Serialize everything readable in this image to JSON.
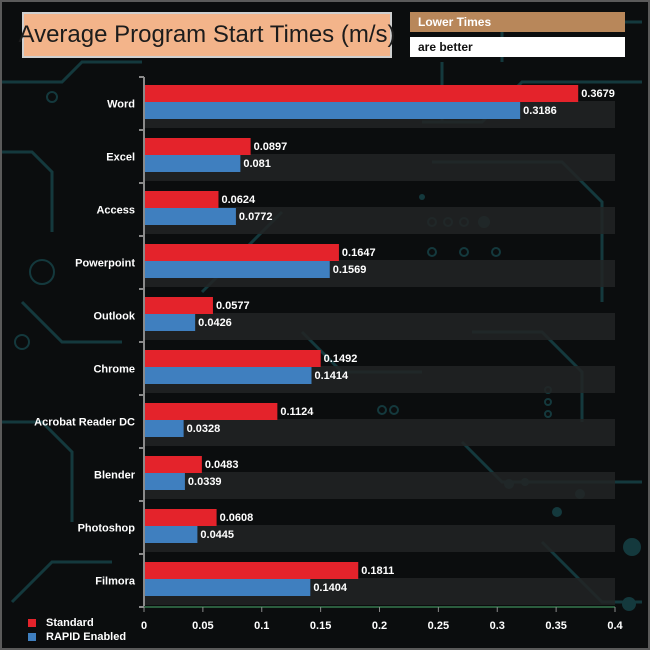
{
  "colors": {
    "standard": "#e4232b",
    "rapid": "#3f7fbf",
    "title_bg": "#f3b48a",
    "note_bg": "#b8875a",
    "background": "#0b0d0e",
    "circuit": "#14393d"
  },
  "note": {
    "line1": "Lower Times",
    "line2": "are better"
  },
  "chart_data": {
    "type": "bar",
    "orientation": "horizontal",
    "title": "Average Program Start Times (m/s)",
    "categories": [
      "Word",
      "Excel",
      "Access",
      "Powerpoint",
      "Outlook",
      "Chrome",
      "Acrobat Reader DC",
      "Blender",
      "Photoshop",
      "Filmora"
    ],
    "series": [
      {
        "name": "Standard",
        "values": [
          0.3679,
          0.0897,
          0.0624,
          0.1647,
          0.0577,
          0.1492,
          0.1124,
          0.0483,
          0.0608,
          0.1811
        ]
      },
      {
        "name": "RAPID Enabled",
        "values": [
          0.3186,
          0.081,
          0.0772,
          0.1569,
          0.0426,
          0.1414,
          0.0328,
          0.0339,
          0.0445,
          0.1404
        ]
      }
    ],
    "value_labels": {
      "Standard": [
        "0.3679",
        "0.0897",
        "0.0624",
        "0.1647",
        "0.0577",
        "0.1492",
        "0.1124",
        "0.0483",
        "0.0608",
        "0.1811"
      ],
      "RAPID Enabled": [
        "0.3186",
        "0.081",
        "0.0772",
        "0.1569",
        "0.0426",
        "0.1414",
        "0.0328",
        "0.0339",
        "0.0445",
        "0.1404"
      ]
    },
    "xlim": [
      0,
      0.4
    ],
    "ticks": [
      0,
      0.05,
      0.1,
      0.15,
      0.2,
      0.25,
      0.3,
      0.35,
      0.4
    ],
    "tick_labels": [
      "0",
      "0.05",
      "0.1",
      "0.15",
      "0.2",
      "0.25",
      "0.3",
      "0.35",
      "0.4"
    ],
    "xlabel": "",
    "ylabel": "",
    "legend_position": "bottom-left",
    "grid": false
  }
}
